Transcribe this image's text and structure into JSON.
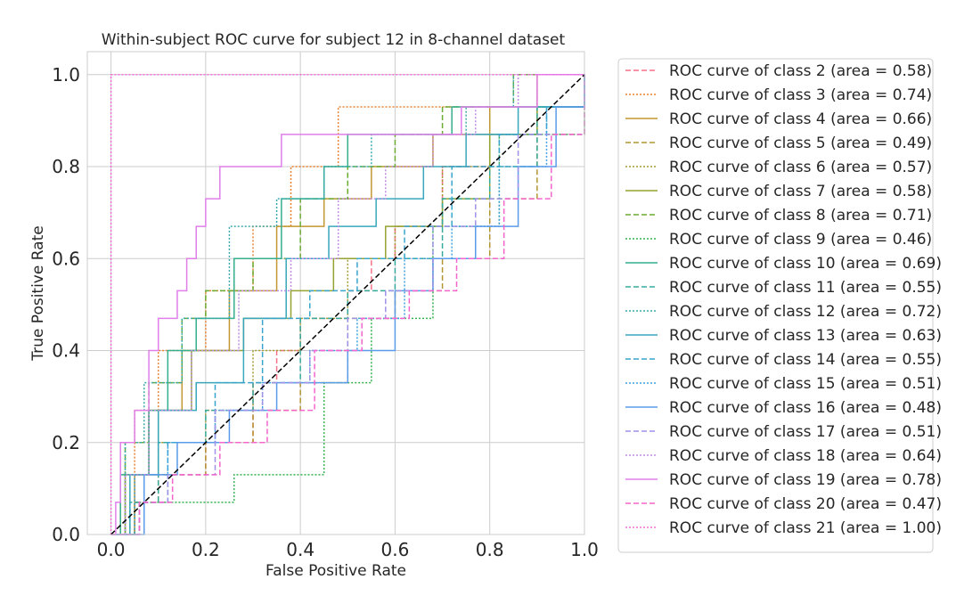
{
  "chart_data": {
    "type": "line",
    "title": "Within-subject ROC curve for subject 12 in 8-channel dataset",
    "xlabel": "False Positive Rate",
    "ylabel": "True Positive Rate",
    "xlim": [
      -0.05,
      1.0
    ],
    "ylim": [
      0.0,
      1.05
    ],
    "xticks": [
      "0.0",
      "0.2",
      "0.4",
      "0.6",
      "0.8",
      "1.0"
    ],
    "yticks": [
      "0.0",
      "0.2",
      "0.4",
      "0.6",
      "0.8",
      "1.0"
    ],
    "grid": true,
    "legend_position": "outside-right",
    "diagonal": {
      "x": [
        0,
        1
      ],
      "y": [
        0,
        1
      ],
      "color": "#000000",
      "dash": "dashed"
    },
    "series": [
      {
        "name": "ROC curve of class 2 (area = 0.58)",
        "color": "#f77189",
        "dash": "dashed",
        "x": [
          0,
          0.05,
          0.1,
          0.2,
          0.3,
          0.35,
          0.4,
          0.5,
          0.55,
          0.6,
          0.7,
          0.8,
          0.9,
          1.0
        ],
        "y": [
          0,
          0.07,
          0.13,
          0.2,
          0.33,
          0.4,
          0.47,
          0.53,
          0.6,
          0.67,
          0.8,
          0.87,
          0.93,
          1.0
        ]
      },
      {
        "name": "ROC curve of class 3 (area = 0.74)",
        "color": "#e7822f",
        "dash": "dotted",
        "x": [
          0,
          0.02,
          0.05,
          0.1,
          0.2,
          0.3,
          0.38,
          0.48,
          0.6,
          0.75,
          0.9,
          1.0
        ],
        "y": [
          0,
          0.13,
          0.27,
          0.4,
          0.53,
          0.67,
          0.8,
          0.93,
          0.93,
          0.93,
          1.0,
          1.0
        ]
      },
      {
        "name": "ROC curve of class 4 (area = 0.66)",
        "color": "#c39732",
        "dash": "solid",
        "x": [
          0,
          0.05,
          0.1,
          0.15,
          0.25,
          0.35,
          0.45,
          0.55,
          0.68,
          0.8,
          0.9,
          1.0
        ],
        "y": [
          0,
          0.13,
          0.27,
          0.4,
          0.53,
          0.67,
          0.73,
          0.8,
          0.87,
          0.93,
          1.0,
          1.0
        ]
      },
      {
        "name": "ROC curve of class 5 (area = 0.49)",
        "color": "#b39531",
        "dash": "dashed",
        "x": [
          0,
          0.05,
          0.1,
          0.2,
          0.3,
          0.4,
          0.5,
          0.6,
          0.7,
          0.8,
          0.9,
          1.0
        ],
        "y": [
          0,
          0.07,
          0.13,
          0.2,
          0.27,
          0.33,
          0.47,
          0.53,
          0.6,
          0.73,
          0.87,
          1.0
        ]
      },
      {
        "name": "ROC curve of class 6 (area = 0.57)",
        "color": "#a59b32",
        "dash": "dotted",
        "x": [
          0,
          0.05,
          0.1,
          0.2,
          0.3,
          0.4,
          0.5,
          0.6,
          0.7,
          0.8,
          0.9,
          1.0
        ],
        "y": [
          0,
          0.13,
          0.2,
          0.27,
          0.4,
          0.47,
          0.6,
          0.67,
          0.8,
          0.87,
          0.93,
          1.0
        ]
      },
      {
        "name": "ROC curve of class 7 (area = 0.58)",
        "color": "#96a331",
        "dash": "solid",
        "x": [
          0,
          0.03,
          0.08,
          0.17,
          0.28,
          0.38,
          0.47,
          0.58,
          0.7,
          0.8,
          0.9,
          1.0
        ],
        "y": [
          0,
          0.13,
          0.27,
          0.4,
          0.47,
          0.53,
          0.6,
          0.67,
          0.73,
          0.87,
          0.93,
          1.0
        ]
      },
      {
        "name": "ROC curve of class 8 (area = 0.71)",
        "color": "#6aac31",
        "dash": "dashed",
        "x": [
          0,
          0.03,
          0.08,
          0.15,
          0.2,
          0.3,
          0.4,
          0.5,
          0.6,
          0.7,
          0.85,
          1.0
        ],
        "y": [
          0,
          0.2,
          0.33,
          0.47,
          0.53,
          0.6,
          0.73,
          0.8,
          0.87,
          0.93,
          1.0,
          1.0
        ]
      },
      {
        "name": "ROC curve of class 9 (area = 0.46)",
        "color": "#32b14e",
        "dash": "dotted",
        "x": [
          0,
          0.05,
          0.15,
          0.26,
          0.33,
          0.45,
          0.55,
          0.68,
          0.82,
          1.0
        ],
        "y": [
          0,
          0.07,
          0.07,
          0.13,
          0.13,
          0.33,
          0.47,
          0.67,
          0.87,
          1.0
        ]
      },
      {
        "name": "ROC curve of class 10 (area = 0.69)",
        "color": "#34ae8d",
        "dash": "solid",
        "x": [
          0,
          0.02,
          0.08,
          0.12,
          0.18,
          0.26,
          0.36,
          0.45,
          0.5,
          0.6,
          0.72,
          0.82,
          1.0
        ],
        "y": [
          0,
          0.13,
          0.27,
          0.4,
          0.47,
          0.6,
          0.73,
          0.8,
          0.87,
          0.87,
          0.93,
          0.93,
          1.0
        ]
      },
      {
        "name": "ROC curve of class 11 (area = 0.55)",
        "color": "#36ab9d",
        "dash": "dashed",
        "x": [
          0,
          0.04,
          0.1,
          0.2,
          0.3,
          0.4,
          0.5,
          0.6,
          0.7,
          0.8,
          0.9,
          1.0
        ],
        "y": [
          0,
          0.07,
          0.2,
          0.27,
          0.33,
          0.47,
          0.53,
          0.6,
          0.73,
          0.8,
          0.93,
          1.0
        ]
      },
      {
        "name": "ROC curve of class 12 (area = 0.72)",
        "color": "#37a9ae",
        "dash": "dotted",
        "x": [
          0,
          0.03,
          0.07,
          0.15,
          0.25,
          0.35,
          0.45,
          0.55,
          0.65,
          0.75,
          0.85,
          1.0
        ],
        "y": [
          0,
          0.2,
          0.33,
          0.47,
          0.67,
          0.73,
          0.8,
          0.87,
          0.87,
          0.93,
          1.0,
          1.0
        ]
      },
      {
        "name": "ROC curve of class 13 (area = 0.63)",
        "color": "#38a7bd",
        "dash": "solid",
        "x": [
          0,
          0.04,
          0.1,
          0.18,
          0.28,
          0.37,
          0.46,
          0.56,
          0.66,
          0.75,
          0.86,
          1.0
        ],
        "y": [
          0,
          0.13,
          0.27,
          0.33,
          0.47,
          0.6,
          0.67,
          0.73,
          0.8,
          0.87,
          0.93,
          1.0
        ]
      },
      {
        "name": "ROC curve of class 14 (area = 0.55)",
        "color": "#39a4cd",
        "dash": "dashed",
        "x": [
          0,
          0.06,
          0.12,
          0.22,
          0.32,
          0.42,
          0.52,
          0.62,
          0.72,
          0.82,
          0.92,
          1.0
        ],
        "y": [
          0,
          0.07,
          0.2,
          0.33,
          0.47,
          0.53,
          0.6,
          0.67,
          0.8,
          0.87,
          0.93,
          1.0
        ]
      },
      {
        "name": "ROC curve of class 15 (area = 0.51)",
        "color": "#3ba1df",
        "dash": "dotted",
        "x": [
          0,
          0.05,
          0.12,
          0.22,
          0.32,
          0.42,
          0.52,
          0.62,
          0.72,
          0.82,
          0.92,
          1.0
        ],
        "y": [
          0,
          0.13,
          0.2,
          0.27,
          0.33,
          0.4,
          0.47,
          0.6,
          0.67,
          0.8,
          0.93,
          1.0
        ]
      },
      {
        "name": "ROC curve of class 16 (area = 0.48)",
        "color": "#5a9bea",
        "dash": "solid",
        "x": [
          0,
          0.07,
          0.14,
          0.25,
          0.35,
          0.5,
          0.6,
          0.68,
          0.77,
          0.86,
          0.94,
          1.0
        ],
        "y": [
          0,
          0.13,
          0.2,
          0.27,
          0.33,
          0.4,
          0.53,
          0.6,
          0.67,
          0.8,
          0.93,
          1.0
        ]
      },
      {
        "name": "ROC curve of class 17 (area = 0.51)",
        "color": "#9e92e8",
        "dash": "dashed",
        "x": [
          0,
          0.06,
          0.12,
          0.22,
          0.32,
          0.42,
          0.5,
          0.58,
          0.68,
          0.77,
          0.86,
          1.0
        ],
        "y": [
          0,
          0.07,
          0.13,
          0.27,
          0.33,
          0.4,
          0.47,
          0.53,
          0.67,
          0.73,
          0.87,
          1.0
        ]
      },
      {
        "name": "ROC curve of class 18 (area = 0.64)",
        "color": "#c08ce6",
        "dash": "dotted",
        "x": [
          0,
          0.03,
          0.08,
          0.17,
          0.27,
          0.38,
          0.48,
          0.58,
          0.68,
          0.77,
          0.86,
          1.0
        ],
        "y": [
          0,
          0.13,
          0.27,
          0.4,
          0.53,
          0.6,
          0.73,
          0.8,
          0.87,
          0.93,
          1.0,
          1.0
        ]
      },
      {
        "name": "ROC curve of class 19 (area = 0.78)",
        "color": "#e07fea",
        "dash": "solid",
        "x": [
          0,
          0.01,
          0.02,
          0.05,
          0.08,
          0.1,
          0.14,
          0.16,
          0.18,
          0.2,
          0.22,
          0.23,
          0.26,
          0.36,
          0.46,
          0.56,
          0.66,
          0.74,
          0.82,
          0.9,
          1.0
        ],
        "y": [
          0,
          0.07,
          0.2,
          0.27,
          0.4,
          0.47,
          0.53,
          0.6,
          0.67,
          0.73,
          0.73,
          0.8,
          0.8,
          0.87,
          0.87,
          0.87,
          0.87,
          0.93,
          0.93,
          1.0,
          1.0
        ]
      },
      {
        "name": "ROC curve of class 20 (area = 0.47)",
        "color": "#f565cc",
        "dash": "dashed",
        "x": [
          0,
          0.06,
          0.13,
          0.23,
          0.33,
          0.43,
          0.53,
          0.63,
          0.73,
          0.83,
          0.93,
          1.0
        ],
        "y": [
          0,
          0.07,
          0.13,
          0.2,
          0.27,
          0.4,
          0.47,
          0.53,
          0.6,
          0.73,
          0.87,
          1.0
        ]
      },
      {
        "name": "ROC curve of class 21 (area = 1.00)",
        "color": "#f36cdc",
        "dash": "dotted",
        "x": [
          0,
          0,
          1.0
        ],
        "y": [
          0,
          1.0,
          1.0
        ]
      }
    ]
  }
}
